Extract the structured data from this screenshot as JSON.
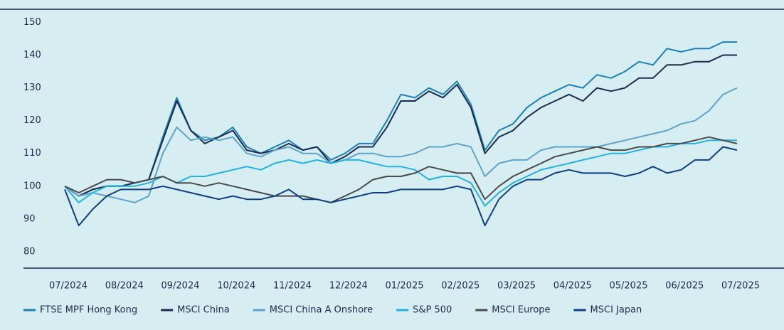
{
  "chart_data": {
    "type": "line",
    "categories": [
      "07/2024",
      null,
      null,
      null,
      "08/2024",
      null,
      null,
      null,
      "09/2024",
      null,
      null,
      null,
      "10/2024",
      null,
      null,
      null,
      "11/2024",
      null,
      null,
      null,
      "12/2024",
      null,
      null,
      null,
      "01/2025",
      null,
      null,
      null,
      "02/2025",
      null,
      null,
      null,
      "03/2025",
      null,
      null,
      null,
      "04/2025",
      null,
      null,
      null,
      "05/2025",
      null,
      null,
      null,
      "06/2025",
      null,
      null,
      null,
      "07/2025"
    ],
    "ylim": [
      75,
      154
    ],
    "yticks": [
      80,
      90,
      100,
      110,
      120,
      130,
      140,
      150
    ],
    "series": [
      {
        "name": "FTSE MPF Hong Kong",
        "color": "#1a80b6",
        "values": [
          100,
          97,
          99,
          100,
          100,
          101,
          102,
          115,
          127,
          117,
          114,
          115,
          118,
          112,
          110,
          112,
          114,
          111,
          112,
          108,
          110,
          113,
          113,
          120,
          128,
          127,
          130,
          128,
          132,
          125,
          111,
          117,
          119,
          124,
          127,
          129,
          131,
          130,
          134,
          133,
          135,
          138,
          137,
          142,
          141,
          142,
          142,
          144,
          144
        ]
      },
      {
        "name": "MSCI China",
        "color": "#1c2a4f",
        "values": [
          100,
          97,
          99,
          100,
          100,
          101,
          102,
          114,
          126,
          117,
          113,
          115,
          117,
          111,
          110,
          111,
          113,
          111,
          112,
          107,
          109,
          112,
          112,
          118,
          126,
          126,
          129,
          127,
          131,
          124,
          110,
          115,
          117,
          121,
          124,
          126,
          128,
          126,
          130,
          129,
          130,
          133,
          133,
          137,
          137,
          138,
          138,
          140,
          140
        ]
      },
      {
        "name": "MSCI China A Onshore",
        "color": "#5fa2c8",
        "values": [
          100,
          97,
          98,
          97,
          96,
          95,
          97,
          110,
          118,
          114,
          115,
          114,
          115,
          110,
          109,
          111,
          112,
          110,
          110,
          107,
          108,
          110,
          110,
          109,
          109,
          110,
          112,
          112,
          113,
          112,
          103,
          107,
          108,
          108,
          111,
          112,
          112,
          112,
          112,
          113,
          114,
          115,
          116,
          117,
          119,
          120,
          123,
          128,
          130
        ]
      },
      {
        "name": "S&P 500",
        "color": "#22b2e2",
        "values": [
          100,
          95,
          98,
          100,
          100,
          100,
          101,
          103,
          101,
          103,
          103,
          104,
          105,
          106,
          105,
          107,
          108,
          107,
          108,
          107,
          108,
          108,
          107,
          106,
          106,
          105,
          102,
          103,
          103,
          101,
          94,
          98,
          101,
          103,
          105,
          106,
          107,
          108,
          109,
          110,
          110,
          111,
          112,
          112,
          113,
          113,
          114,
          114,
          114
        ]
      },
      {
        "name": "MSCI Europe",
        "color": "#4a4a4a",
        "values": [
          100,
          98,
          100,
          102,
          102,
          101,
          102,
          103,
          101,
          101,
          100,
          101,
          100,
          99,
          98,
          97,
          97,
          97,
          96,
          95,
          97,
          99,
          102,
          103,
          103,
          104,
          106,
          105,
          104,
          104,
          96,
          100,
          103,
          105,
          107,
          109,
          110,
          111,
          112,
          111,
          111,
          112,
          112,
          113,
          113,
          114,
          115,
          114,
          113
        ]
      },
      {
        "name": "MSCI Japan",
        "color": "#0f3e82",
        "values": [
          99,
          88,
          93,
          97,
          99,
          99,
          99,
          100,
          99,
          98,
          97,
          96,
          97,
          96,
          96,
          97,
          99,
          96,
          96,
          95,
          96,
          97,
          98,
          98,
          99,
          99,
          99,
          99,
          100,
          99,
          88,
          96,
          100,
          102,
          102,
          104,
          105,
          104,
          104,
          104,
          103,
          104,
          106,
          104,
          105,
          108,
          108,
          112,
          111
        ]
      }
    ]
  }
}
